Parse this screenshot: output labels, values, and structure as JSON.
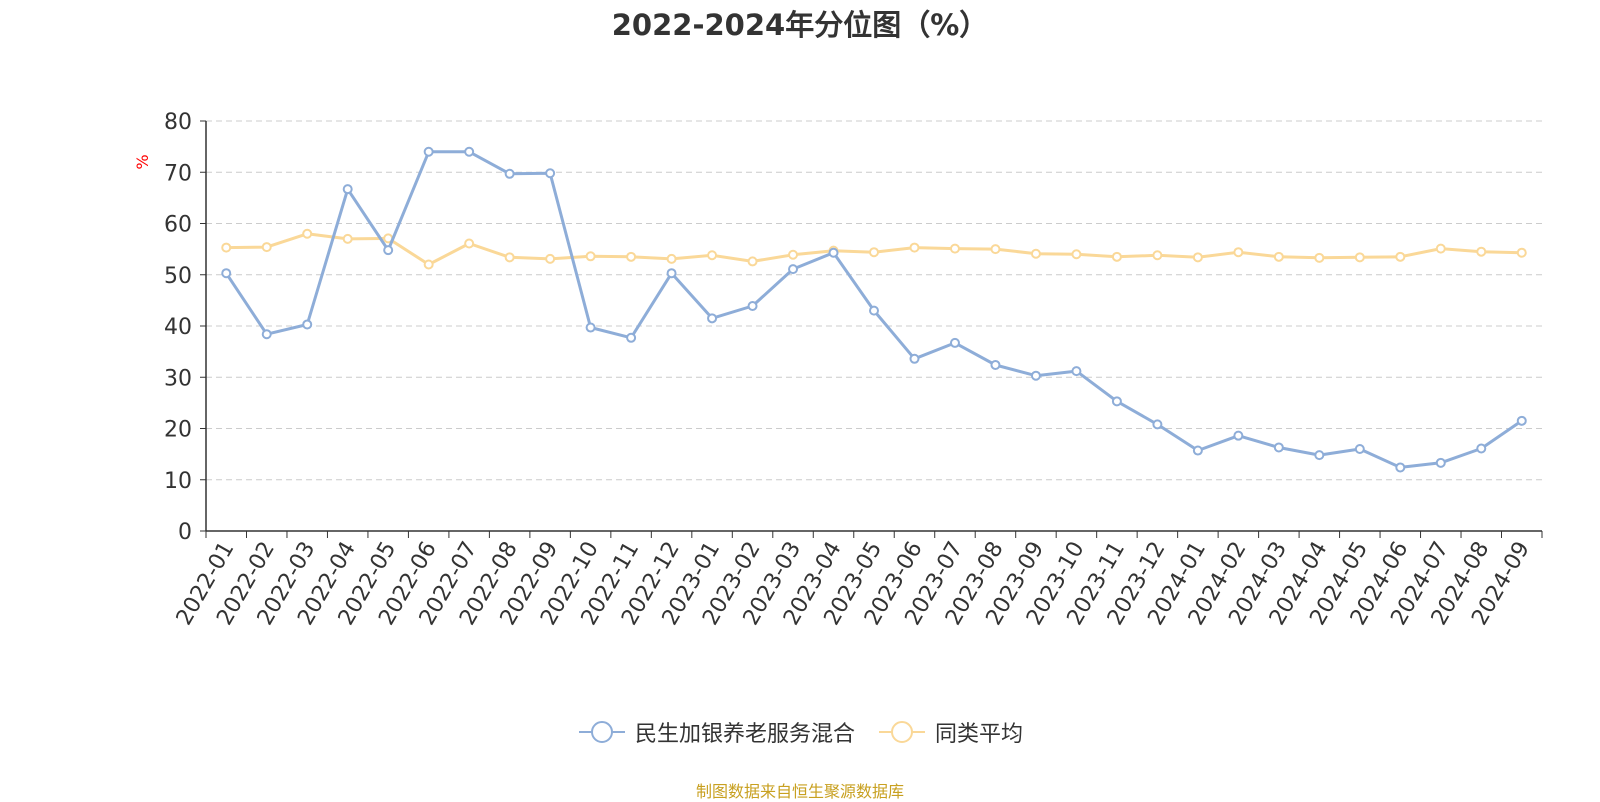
{
  "colors": {
    "series1": "#8eadd8",
    "series2": "#fad898",
    "axis": "#333333",
    "grid": "#cccccc",
    "ylabel": "#ff0000",
    "source": "#c8a020",
    "text": "#333333"
  },
  "source_note": "制图数据来自恒生聚源数据库",
  "chart_data": {
    "type": "line",
    "title": "2022-2024年分位图（%）",
    "xlabel": "",
    "ylabel": "%",
    "ylim": [
      0,
      80
    ],
    "yticks": [
      0,
      10,
      20,
      30,
      40,
      50,
      60,
      70,
      80
    ],
    "grid": true,
    "legend_position": "bottom",
    "categories": [
      "2022-01",
      "2022-02",
      "2022-03",
      "2022-04",
      "2022-05",
      "2022-06",
      "2022-07",
      "2022-08",
      "2022-09",
      "2022-10",
      "2022-11",
      "2022-12",
      "2023-01",
      "2023-02",
      "2023-03",
      "2023-04",
      "2023-05",
      "2023-06",
      "2023-07",
      "2023-08",
      "2023-09",
      "2023-10",
      "2023-11",
      "2023-12",
      "2024-01",
      "2024-02",
      "2024-03",
      "2024-04",
      "2024-05",
      "2024-06",
      "2024-07",
      "2024-08",
      "2024-09"
    ],
    "series": [
      {
        "name": "民生加银养老服务混合",
        "values": [
          50.3,
          38.4,
          40.3,
          66.7,
          54.8,
          74.0,
          74.0,
          69.7,
          69.8,
          39.7,
          37.7,
          50.3,
          41.5,
          43.9,
          51.1,
          54.3,
          43.0,
          33.6,
          36.7,
          32.4,
          30.3,
          31.2,
          25.3,
          20.8,
          15.7,
          18.6,
          16.3,
          14.8,
          16.0,
          12.4,
          13.3,
          16.1,
          21.5
        ]
      },
      {
        "name": "同类平均",
        "values": [
          55.3,
          55.4,
          58.0,
          57.0,
          57.1,
          52.0,
          56.1,
          53.4,
          53.1,
          53.6,
          53.5,
          53.1,
          53.8,
          52.6,
          53.9,
          54.7,
          54.4,
          55.3,
          55.1,
          55.0,
          54.1,
          54.0,
          53.5,
          53.8,
          53.4,
          54.4,
          53.5,
          53.3,
          53.4,
          53.5,
          55.1,
          54.5,
          54.3
        ]
      }
    ]
  }
}
